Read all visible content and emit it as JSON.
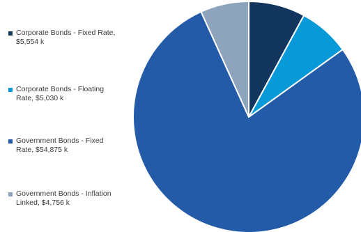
{
  "chart_data": {
    "type": "pie",
    "title": "",
    "legend_position": "left",
    "start_angle_deg": 0,
    "direction": "clockwise",
    "slices": [
      {
        "label": "Corporate Bonds - Fixed Rate, $5,554 k",
        "legend_text": "Corporate Bonds - Fixed Rate,\n$5,554 k",
        "value": 5554,
        "color": "#13365e"
      },
      {
        "label": "Corporate Bonds - Floating Rate, $5,030 k",
        "legend_text": "Corporate Bonds - Floating\nRate, $5,030 k",
        "value": 5030,
        "color": "#089ad8"
      },
      {
        "label": "Government Bonds - Fixed Rate, $54,875 k",
        "legend_text": "Government Bonds - Fixed\nRate, $54,875 k",
        "value": 54875,
        "color": "#235ba8"
      },
      {
        "label": "Government Bonds - Inflation Linked, $4,756 k",
        "legend_text": "Government Bonds - Inflation\nLinked, $4,756 k",
        "value": 4756,
        "color": "#8ea4bd"
      }
    ]
  }
}
